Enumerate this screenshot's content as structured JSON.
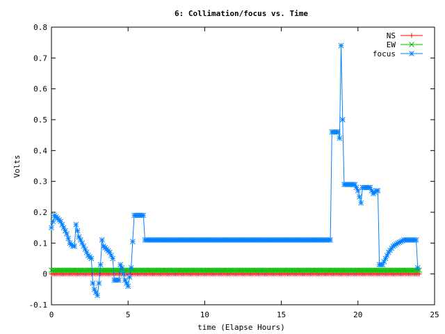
{
  "chart_data": {
    "type": "line",
    "title": "6: Collimation/focus vs. Time",
    "xlabel": "time (Elapse Hours)",
    "ylabel": "Volts",
    "xlim": [
      0,
      25
    ],
    "ylim": [
      -0.1,
      0.8
    ],
    "xticks": [
      "0",
      "5",
      "10",
      "15",
      "20",
      "25"
    ],
    "yticks": [
      "-0.1",
      "0",
      "0.1",
      "0.2",
      "0.3",
      "0.4",
      "0.5",
      "0.6",
      "0.7",
      "0.8"
    ],
    "grid": false,
    "legend_position": "top-right",
    "series": [
      {
        "name": "NS",
        "color": "#ff0000",
        "marker": "plus",
        "x": [
          0,
          24
        ],
        "y": [
          0.0,
          0.0
        ]
      },
      {
        "name": "EW",
        "color": "#00c000",
        "marker": "cross",
        "x": [
          0,
          24
        ],
        "y": [
          0.012,
          0.012
        ]
      },
      {
        "name": "focus",
        "color": "#0080ff",
        "marker": "star",
        "x": [
          0,
          0.2,
          0.4,
          0.6,
          0.8,
          1.0,
          1.2,
          1.4,
          1.5,
          1.6,
          1.8,
          1.9,
          2.0,
          2.2,
          2.4,
          2.6,
          2.7,
          2.8,
          3.0,
          3.1,
          3.2,
          3.3,
          3.4,
          3.6,
          3.8,
          4.0,
          4.1,
          4.2,
          4.4,
          4.5,
          4.6,
          4.8,
          5.0,
          5.2,
          5.4,
          5.5,
          5.6,
          5.8,
          6.0,
          6.1,
          6.2,
          7.0,
          10.0,
          14.0,
          18.0,
          18.2,
          18.3,
          18.5,
          18.7,
          18.8,
          18.9,
          19.0,
          19.1,
          19.3,
          19.5,
          19.8,
          20.0,
          20.1,
          20.2,
          20.3,
          20.5,
          20.8,
          21.0,
          21.2,
          21.3,
          21.4,
          21.6,
          21.8,
          22.0,
          22.3,
          22.6,
          23.0,
          23.3,
          23.6,
          23.8,
          23.9
        ],
        "y": [
          0.15,
          0.19,
          0.18,
          0.17,
          0.15,
          0.13,
          0.1,
          0.09,
          0.09,
          0.16,
          0.12,
          0.11,
          0.1,
          0.08,
          0.06,
          0.05,
          -0.03,
          -0.05,
          -0.07,
          -0.03,
          0.03,
          0.11,
          0.09,
          0.08,
          0.07,
          0.05,
          -0.02,
          -0.02,
          -0.02,
          0.03,
          0.02,
          -0.02,
          -0.04,
          0.02,
          0.19,
          0.19,
          0.19,
          0.19,
          0.19,
          0.11,
          0.11,
          0.11,
          0.11,
          0.11,
          0.11,
          0.11,
          0.46,
          0.46,
          0.46,
          0.44,
          0.74,
          0.5,
          0.29,
          0.29,
          0.29,
          0.29,
          0.27,
          0.25,
          0.23,
          0.28,
          0.28,
          0.28,
          0.26,
          0.27,
          0.27,
          0.03,
          0.03,
          0.05,
          0.07,
          0.09,
          0.1,
          0.11,
          0.11,
          0.11,
          0.11,
          0.02
        ]
      }
    ]
  }
}
